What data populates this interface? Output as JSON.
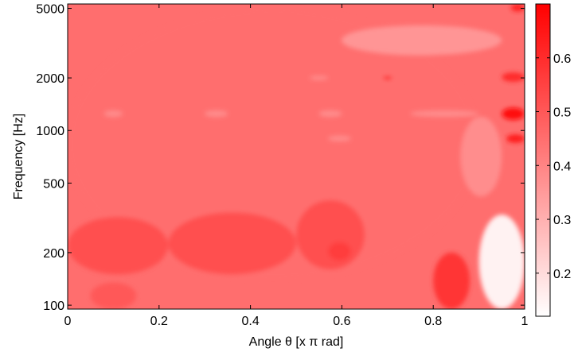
{
  "chart_data": {
    "type": "heatmap",
    "subtype": "filled-contour",
    "title": "",
    "xlabel": "Angle θ [x π rad]",
    "ylabel": "Frequency [Hz]",
    "xlim": [
      0,
      1
    ],
    "ylim": [
      95,
      5300
    ],
    "yscale": "log",
    "x_ticks": [
      0,
      0.2,
      0.4,
      0.6,
      0.8,
      1
    ],
    "x_tick_labels": [
      "0",
      "0.2",
      "0.4",
      "0.6",
      "0.8",
      "1"
    ],
    "y_ticks": [
      100,
      200,
      500,
      1000,
      2000,
      5000
    ],
    "y_tick_labels": [
      "100",
      "200",
      "500",
      "1000",
      "2000",
      "5000"
    ],
    "colorbar": {
      "range": [
        0.12,
        0.7
      ],
      "ticks": [
        0.2,
        0.3,
        0.4,
        0.5,
        0.6
      ],
      "tick_labels": [
        "0.2",
        "0.3",
        "0.4",
        "0.5",
        "0.6"
      ],
      "colormap": [
        "#ffffff",
        "#ff0000"
      ]
    },
    "base_value": 0.45,
    "regions": [
      {
        "x_range": [
          0,
          0.9
        ],
        "freq_range": [
          140,
          5000
        ],
        "value": 0.45
      },
      {
        "x_range": [
          0,
          0.22
        ],
        "freq_range": [
          150,
          320
        ],
        "value": 0.52
      },
      {
        "x_range": [
          0.22,
          0.5
        ],
        "freq_range": [
          150,
          340
        ],
        "value": 0.52
      },
      {
        "x_range": [
          0.5,
          0.65
        ],
        "freq_range": [
          160,
          400
        ],
        "value": 0.52
      },
      {
        "x_range": [
          0.05,
          0.15
        ],
        "freq_range": [
          95,
          135
        ],
        "value": 0.5
      },
      {
        "x_range": [
          0.57,
          0.62
        ],
        "freq_range": [
          180,
          230
        ],
        "value": 0.56
      },
      {
        "x_range": [
          0.8,
          0.88
        ],
        "freq_range": [
          95,
          200
        ],
        "value": 0.58
      },
      {
        "x_range": [
          0.9,
          1.0
        ],
        "freq_range": [
          95,
          330
        ],
        "value": 0.15
      },
      {
        "x_range": [
          0.95,
          1.0
        ],
        "freq_range": [
          1150,
          1350
        ],
        "value": 0.68
      },
      {
        "x_range": [
          0.96,
          1.0
        ],
        "freq_range": [
          850,
          950
        ],
        "value": 0.64
      },
      {
        "x_range": [
          0.95,
          1.0
        ],
        "freq_range": [
          1900,
          2150
        ],
        "value": 0.6
      },
      {
        "x_range": [
          0.97,
          1.0
        ],
        "freq_range": [
          4800,
          5300
        ],
        "value": 0.62
      },
      {
        "x_range": [
          0.6,
          0.95
        ],
        "freq_range": [
          2700,
          4000
        ],
        "value": 0.36
      },
      {
        "x_range": [
          0.86,
          0.95
        ],
        "freq_range": [
          420,
          1200
        ],
        "value": 0.38
      },
      {
        "x_range": [
          0.08,
          0.12
        ],
        "freq_range": [
          1200,
          1300
        ],
        "value": 0.38
      },
      {
        "x_range": [
          0.3,
          0.35
        ],
        "freq_range": [
          1200,
          1300
        ],
        "value": 0.38
      },
      {
        "x_range": [
          0.55,
          0.6
        ],
        "freq_range": [
          1200,
          1300
        ],
        "value": 0.38
      },
      {
        "x_range": [
          0.57,
          0.62
        ],
        "freq_range": [
          870,
          930
        ],
        "value": 0.38
      },
      {
        "x_range": [
          0.53,
          0.57
        ],
        "freq_range": [
          1950,
          2050
        ],
        "value": 0.38
      },
      {
        "x_range": [
          0.69,
          0.71
        ],
        "freq_range": [
          1950,
          2050
        ],
        "value": 0.6
      },
      {
        "x_range": [
          0.75,
          0.9
        ],
        "freq_range": [
          1200,
          1300
        ],
        "value": 0.38
      }
    ]
  }
}
